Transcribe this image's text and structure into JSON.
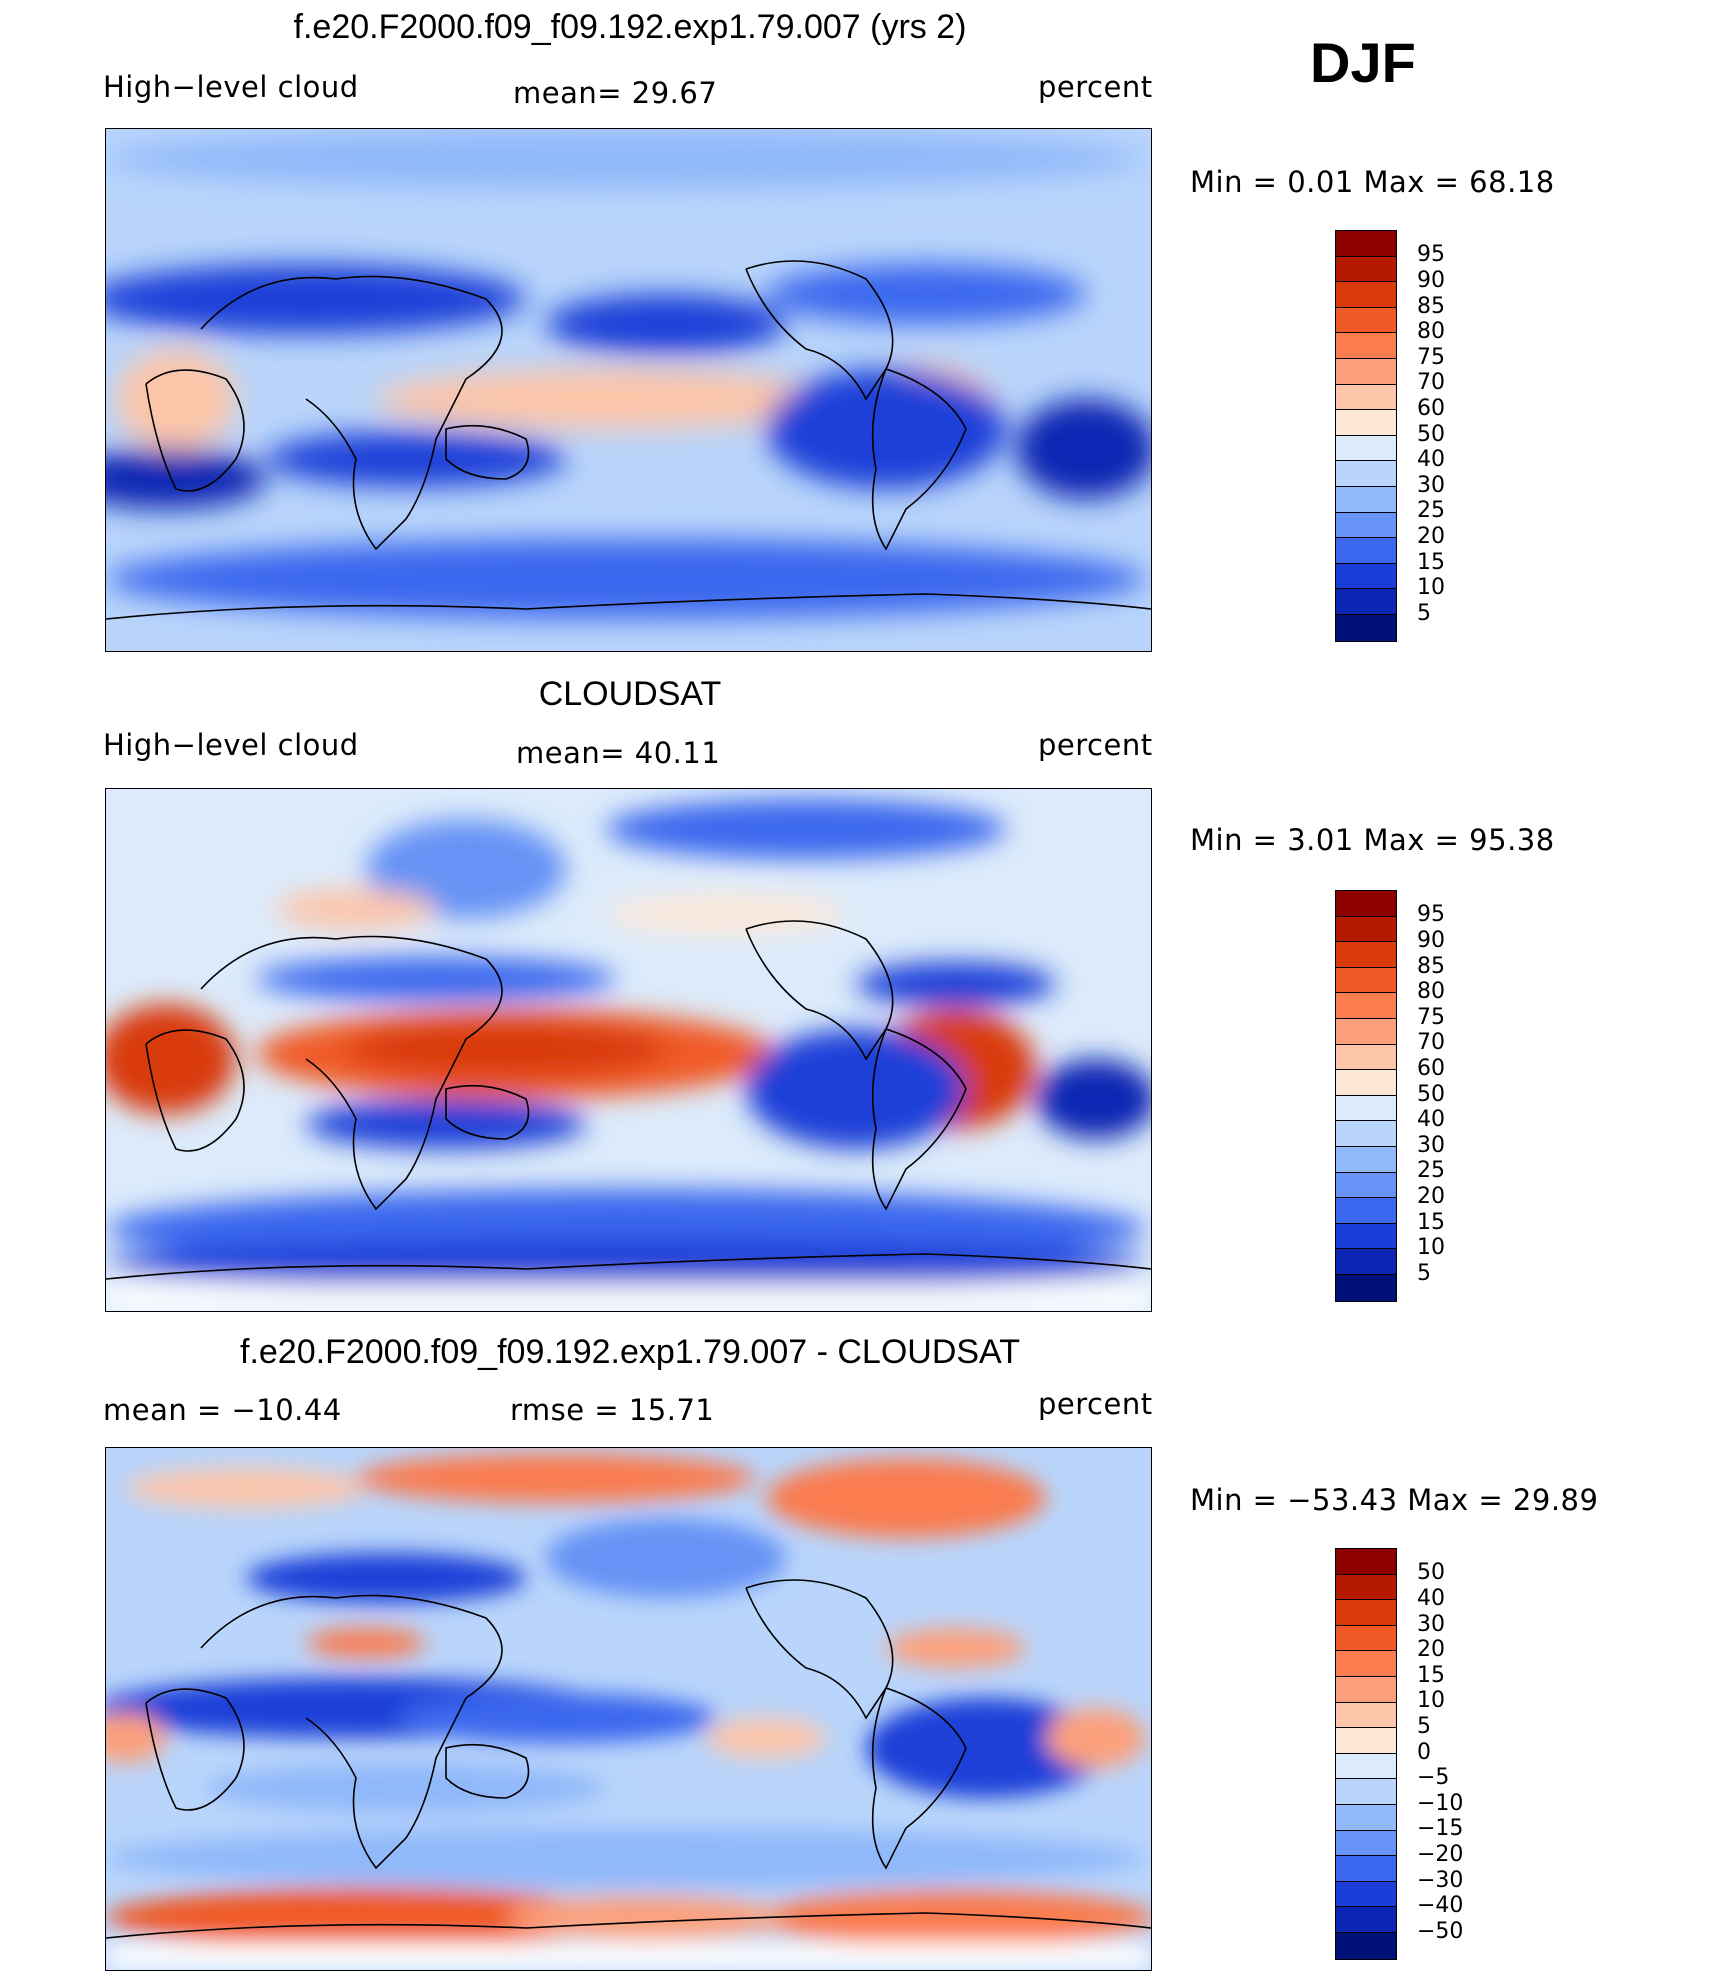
{
  "season": "DJF",
  "panels": [
    {
      "title": "f.e20.F2000.f09_f09.192.exp1.79.007 (yrs 2)",
      "left_label": "High−level cloud",
      "center_label": "mean=   29.67",
      "right_label": "percent",
      "minmax": "Min  =     0.01  Max  =    68.18",
      "colorbar_labels": [
        "95",
        "90",
        "85",
        "80",
        "75",
        "70",
        "60",
        "50",
        "40",
        "30",
        "25",
        "20",
        "15",
        "10",
        "5"
      ],
      "colorbar_colors": [
        "#8c0000",
        "#b51a00",
        "#d93a0c",
        "#f05a28",
        "#fa7c4f",
        "#fca07c",
        "#fdc5a9",
        "#fde8d8",
        "#dcebfb",
        "#b9d5fb",
        "#90b8fa",
        "#6693f5",
        "#3b68ee",
        "#1a3fd8",
        "#0c25b3",
        "#00127a"
      ]
    },
    {
      "title": "CLOUDSAT",
      "left_label": "High−level cloud",
      "center_label": "mean=   40.11",
      "right_label": "percent",
      "minmax": "Min  =     3.01  Max  =    95.38",
      "colorbar_labels": [
        "95",
        "90",
        "85",
        "80",
        "75",
        "70",
        "60",
        "50",
        "40",
        "30",
        "25",
        "20",
        "15",
        "10",
        "5"
      ],
      "colorbar_colors": [
        "#8c0000",
        "#b51a00",
        "#d93a0c",
        "#f05a28",
        "#fa7c4f",
        "#fca07c",
        "#fdc5a9",
        "#fde8d8",
        "#dcebfb",
        "#b9d5fb",
        "#90b8fa",
        "#6693f5",
        "#3b68ee",
        "#1a3fd8",
        "#0c25b3",
        "#00127a"
      ]
    },
    {
      "title": "f.e20.F2000.f09_f09.192.exp1.79.007 - CLOUDSAT",
      "left_label": "mean  =  −10.44",
      "center_label": "rmse  =    15.71",
      "right_label": "percent",
      "minmax": "Min  = −53.43  Max  =    29.89",
      "colorbar_labels": [
        "50",
        "40",
        "30",
        "20",
        "15",
        "10",
        "5",
        "0",
        "−5",
        "−10",
        "−15",
        "−20",
        "−30",
        "−40",
        "−50"
      ],
      "colorbar_colors": [
        "#8c0000",
        "#b51a00",
        "#d93a0c",
        "#f05a28",
        "#fa7c4f",
        "#fca07c",
        "#fdc5a9",
        "#fde8d8",
        "#dcebfb",
        "#b9d5fb",
        "#90b8fa",
        "#6693f5",
        "#3b68ee",
        "#1a3fd8",
        "#0c25b3",
        "#00127a"
      ]
    }
  ]
}
